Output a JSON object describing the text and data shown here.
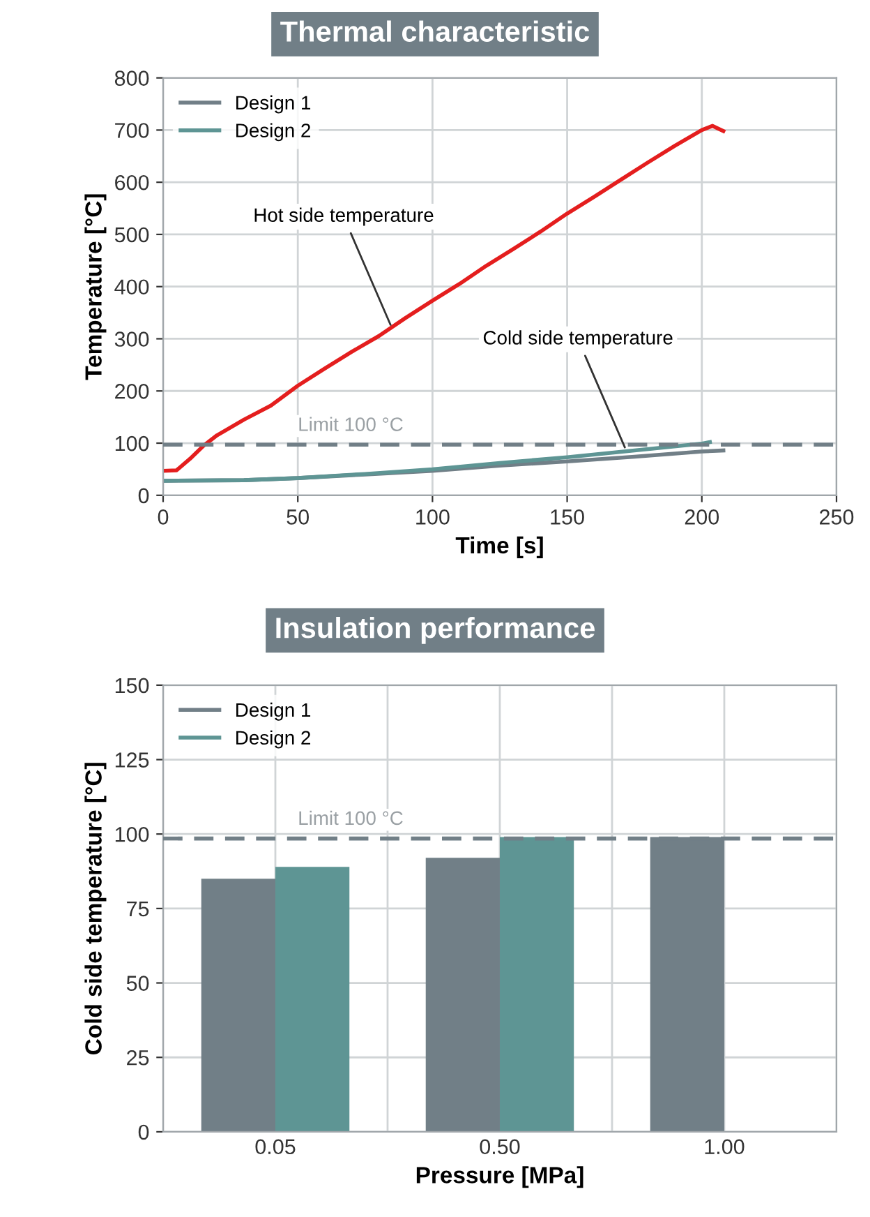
{
  "chart_data": [
    {
      "type": "line",
      "title": "Thermal characteristic",
      "xlabel": "Time [s]",
      "ylabel": "Temperature [°C]",
      "xlim": [
        0,
        250
      ],
      "xticks": [
        0,
        50,
        100,
        150,
        200,
        250
      ],
      "ylim": [
        0,
        800
      ],
      "yticks": [
        0,
        100,
        200,
        300,
        400,
        500,
        600,
        700,
        800
      ],
      "grid": true,
      "legend": "top left",
      "series": [
        {
          "color": "#e41e1e",
          "x": [
            0,
            5,
            10,
            15,
            20,
            25,
            30,
            40,
            50,
            60,
            70,
            80,
            90,
            100,
            110,
            120,
            130,
            140,
            150,
            160,
            170,
            180,
            190,
            200,
            204,
            208
          ],
          "values": [
            47,
            48,
            70,
            95,
            115,
            130,
            145,
            172,
            210,
            243,
            275,
            305,
            340,
            373,
            405,
            440,
            472,
            505,
            540,
            572,
            605,
            638,
            670,
            700,
            708,
            698
          ]
        },
        {
          "name": "Design 1",
          "color": "#717f87",
          "x": [
            0,
            30,
            50,
            75,
            100,
            125,
            150,
            175,
            200,
            208
          ],
          "values": [
            28,
            29,
            33,
            40,
            47,
            57,
            65,
            74,
            84,
            86
          ]
        },
        {
          "name": "Design 2",
          "color": "#5e9594",
          "x": [
            0,
            30,
            50,
            75,
            100,
            125,
            150,
            175,
            200,
            203
          ],
          "values": [
            28,
            29,
            33,
            41,
            50,
            62,
            73,
            86,
            99,
            102
          ]
        }
      ],
      "ref_lines": [
        {
          "axis": "y",
          "value": 97,
          "label": "Limit 100 °C",
          "color": "#717f87",
          "line_style": "dashed"
        }
      ],
      "annotations": [
        {
          "text": "Hot side temperature",
          "x": 85,
          "y": 320
        },
        {
          "text": "Cold side temperature",
          "x": 172,
          "y": 85
        }
      ]
    },
    {
      "type": "bar",
      "title": "Insulation performance",
      "xlabel": "Pressure [MPa]",
      "ylabel": "Cold side temperature [°C]",
      "categories": [
        "0.05",
        "0.50",
        "1.00"
      ],
      "ylim": [
        0,
        150
      ],
      "yticks": [
        0,
        25,
        50,
        75,
        100,
        125,
        150
      ],
      "grid": true,
      "legend": "top left",
      "series": [
        {
          "name": "Design 1",
          "color": "#717f87",
          "values": [
            85,
            92,
            99
          ]
        },
        {
          "name": "Design 2",
          "color": "#5e9594",
          "values": [
            89,
            99,
            null
          ]
        }
      ],
      "ref_lines": [
        {
          "axis": "y",
          "value": 98.5,
          "label": "Limit 100 °C",
          "color": "#717f87",
          "line_style": "dashed"
        }
      ]
    }
  ]
}
